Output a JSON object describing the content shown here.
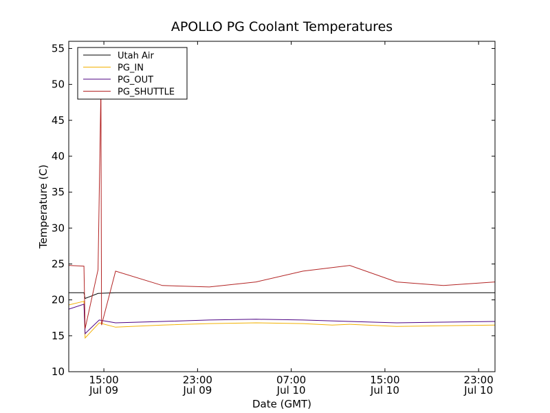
{
  "chart_data": {
    "type": "line",
    "title": "APOLLO PG Coolant Temperatures",
    "xlabel": "Date (GMT)",
    "ylabel": "Temperature (C)",
    "ylim": [
      10,
      56
    ],
    "xlim_hours": [
      0,
      36.4
    ],
    "yticks": [
      10,
      15,
      20,
      25,
      30,
      35,
      40,
      45,
      50,
      55
    ],
    "xticks": [
      {
        "hour": 3,
        "time": "15:00",
        "date": "Jul 09"
      },
      {
        "hour": 11,
        "time": "23:00",
        "date": "Jul 09"
      },
      {
        "hour": 19,
        "time": "07:00",
        "date": "Jul 10"
      },
      {
        "hour": 27,
        "time": "15:00",
        "date": "Jul 10"
      },
      {
        "hour": 35,
        "time": "23:00",
        "date": "Jul 10"
      }
    ],
    "legend_position": "top-left",
    "series": [
      {
        "name": "Utah Air",
        "color": "#000000",
        "points": [
          [
            0,
            21.0
          ],
          [
            1.3,
            21.0
          ],
          [
            1.4,
            20.2
          ],
          [
            2.5,
            20.9
          ],
          [
            4.0,
            21.0
          ],
          [
            8.0,
            21.0
          ],
          [
            12.0,
            21.0
          ],
          [
            16.0,
            21.0
          ],
          [
            20.0,
            21.0
          ],
          [
            24.0,
            21.0
          ],
          [
            28.0,
            21.0
          ],
          [
            32.0,
            21.0
          ],
          [
            36.4,
            21.0
          ]
        ]
      },
      {
        "name": "PG_IN",
        "color": "#f2b000",
        "points": [
          [
            0,
            19.3
          ],
          [
            1.3,
            19.8
          ],
          [
            1.4,
            14.7
          ],
          [
            2.6,
            16.8
          ],
          [
            4.0,
            16.2
          ],
          [
            8.0,
            16.5
          ],
          [
            12.0,
            16.7
          ],
          [
            16.0,
            16.8
          ],
          [
            20.0,
            16.7
          ],
          [
            22.5,
            16.5
          ],
          [
            24.0,
            16.6
          ],
          [
            28.0,
            16.3
          ],
          [
            32.0,
            16.4
          ],
          [
            36.4,
            16.5
          ]
        ]
      },
      {
        "name": "PG_OUT",
        "color": "#4b0082",
        "points": [
          [
            0,
            18.7
          ],
          [
            1.3,
            19.4
          ],
          [
            1.4,
            15.3
          ],
          [
            2.6,
            17.2
          ],
          [
            4.0,
            16.8
          ],
          [
            8.0,
            17.0
          ],
          [
            12.0,
            17.2
          ],
          [
            16.0,
            17.3
          ],
          [
            20.0,
            17.2
          ],
          [
            24.0,
            17.0
          ],
          [
            28.0,
            16.8
          ],
          [
            32.0,
            16.9
          ],
          [
            36.4,
            17.0
          ]
        ]
      },
      {
        "name": "PG_SHUTTLE",
        "color": "#b22222",
        "points": [
          [
            0,
            24.8
          ],
          [
            1.3,
            24.7
          ],
          [
            1.4,
            16.0
          ],
          [
            2.5,
            24.2
          ],
          [
            2.75,
            49.5
          ],
          [
            2.8,
            16.5
          ],
          [
            4.0,
            24.0
          ],
          [
            8.0,
            22.0
          ],
          [
            12.0,
            21.8
          ],
          [
            16.0,
            22.5
          ],
          [
            20.0,
            24.0
          ],
          [
            24.0,
            24.8
          ],
          [
            28.0,
            22.5
          ],
          [
            32.0,
            22.0
          ],
          [
            36.4,
            22.5
          ]
        ]
      }
    ]
  }
}
